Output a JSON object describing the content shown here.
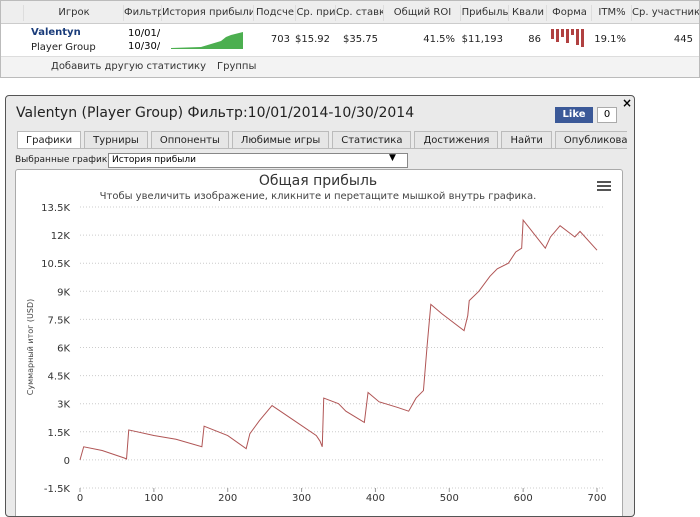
{
  "table": {
    "headers": [
      "Игрок",
      "Фильтр",
      "История прибыли",
      "Подсче",
      "Ср. при",
      "Ср. ставк",
      "Общий ROI",
      "Прибыль",
      "Квали",
      "Форма",
      "ITM%",
      "Ср. участник"
    ],
    "player": {
      "name": "Valentyn",
      "group": "Player Group"
    },
    "filter": [
      "10/01/",
      "10/30/"
    ],
    "cells": [
      "703",
      "$15.92",
      "$35.75",
      "41.5%",
      "$11,193",
      "86",
      "19.1%",
      "445"
    ]
  },
  "toolbar": {
    "add_stats": "Добавить другую статистику",
    "groups": "Группы"
  },
  "window": {
    "title": "Valentyn (Player Group) Фильтр:10/01/2014-10/30/2014",
    "like": "Like",
    "like_count": 0,
    "tabs": [
      "Графики",
      "Турниры",
      "Оппоненты",
      "Любимые игры",
      "Статистика",
      "Достижения",
      "Найти",
      "Опубликовать"
    ],
    "selector_label": "Выбранные графики:",
    "selector_value": "История прибыли"
  },
  "chart_data": {
    "type": "line",
    "title": "Общая прибыль",
    "subtitle": "Чтобы увеличить изображение, кликните и перетащите мышкой внутрь графика.",
    "y_label": "Суммарный итог (USD)",
    "color": "#b05555",
    "grid": true,
    "x": [
      0,
      5,
      30,
      60,
      63,
      66,
      100,
      130,
      165,
      168,
      200,
      225,
      230,
      243,
      260,
      290,
      320,
      325,
      328,
      330,
      350,
      360,
      385,
      390,
      405,
      430,
      445,
      455,
      465,
      470,
      475,
      490,
      520,
      525,
      527,
      540,
      555,
      565,
      580,
      590,
      598,
      600,
      608,
      630,
      637,
      650,
      670,
      677,
      700
    ],
    "values": [
      0,
      700,
      500,
      100,
      50,
      1600,
      1300,
      1100,
      700,
      1800,
      1300,
      600,
      1400,
      2100,
      2900,
      2100,
      1300,
      1000,
      700,
      3300,
      3000,
      2600,
      2000,
      3600,
      3100,
      2800,
      2600,
      3300,
      3700,
      6100,
      8300,
      7800,
      6900,
      7700,
      8500,
      9000,
      9800,
      10200,
      10500,
      11100,
      11300,
      12800,
      12400,
      11300,
      11900,
      12500,
      11900,
      12200,
      11193
    ],
    "xlim": [
      0,
      700
    ],
    "xticks": [
      0,
      100,
      200,
      300,
      400,
      500,
      600,
      700
    ],
    "ylim": [
      -1500,
      13500
    ],
    "yticks": [
      {
        "value": -1500,
        "label": "-1.5K"
      },
      0,
      {
        "value": 1500,
        "label": "1.5K"
      },
      {
        "value": 3000,
        "label": "3K"
      },
      {
        "value": 4500,
        "label": "4.5K"
      },
      {
        "value": 6000,
        "label": "6K"
      },
      {
        "value": 7500,
        "label": "7.5K"
      },
      {
        "value": 9000,
        "label": "9K"
      },
      {
        "value": 10500,
        "label": "10.5K"
      },
      {
        "value": 12000,
        "label": "12K"
      },
      {
        "value": 13500,
        "label": "13.5K"
      }
    ]
  }
}
